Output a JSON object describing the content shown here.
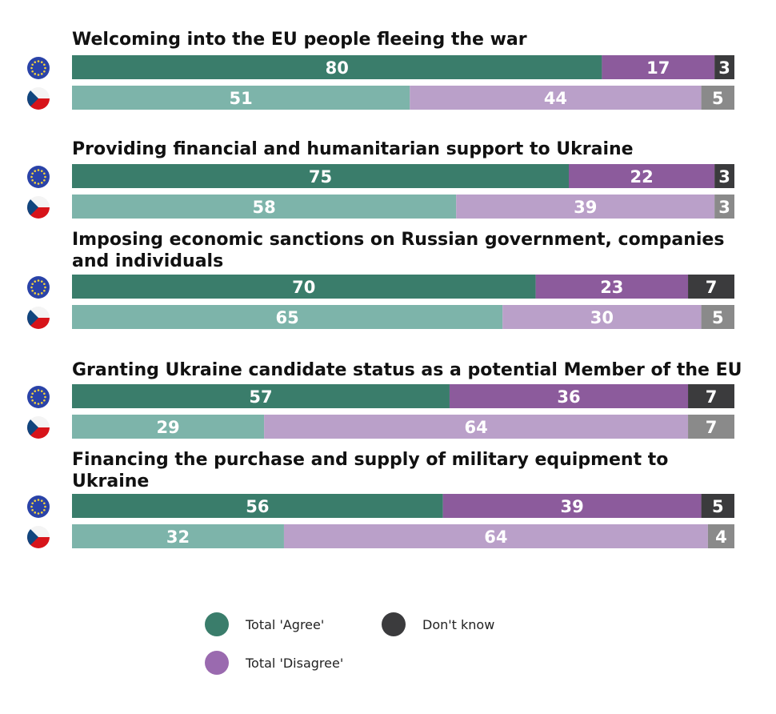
{
  "chart_data": {
    "type": "bar",
    "orientation": "horizontal-stacked",
    "categories": [
      "Welcoming into the EU people fleeing the war",
      "Providing financial and humanitarian support to Ukraine",
      "Imposing economic sanctions on Russian government, companies and individuals",
      "Granting Ukraine candidate status as a potential Member of the EU",
      "Financing the purchase and supply of military equipment to Ukraine"
    ],
    "groups": [
      {
        "region": "EU",
        "icon": "eu-flag-icon",
        "series": [
          {
            "name": "Total 'Agree'",
            "values": [
              80,
              75,
              70,
              57,
              56
            ]
          },
          {
            "name": "Total 'Disagree'",
            "values": [
              17,
              22,
              23,
              36,
              39
            ]
          },
          {
            "name": "Don't know",
            "values": [
              3,
              3,
              7,
              7,
              5
            ]
          }
        ]
      },
      {
        "region": "CZ",
        "icon": "czech-flag-icon",
        "series": [
          {
            "name": "Total 'Agree'",
            "values": [
              51,
              58,
              65,
              29,
              32
            ]
          },
          {
            "name": "Total 'Disagree'",
            "values": [
              44,
              39,
              30,
              64,
              64
            ]
          },
          {
            "name": "Don't know",
            "values": [
              5,
              3,
              5,
              7,
              4
            ]
          }
        ]
      }
    ],
    "xlim": [
      0,
      100
    ],
    "legend": {
      "position": "bottom",
      "items": [
        "Total 'Agree'",
        "Don't know",
        "Total 'Disagree'"
      ]
    },
    "colors": {
      "eu_agree": "#3a7d6b",
      "eu_disagree": "#8c5b9c",
      "eu_dontknow": "#3b3b3d",
      "cz_agree": "#7db4aa",
      "cz_disagree": "#baa0c9",
      "cz_dontknow": "#8a8a8a",
      "legend_agree": "#3a7d6b",
      "legend_disagree": "#9a6aaf",
      "legend_dontknow": "#3b3b3d"
    }
  }
}
